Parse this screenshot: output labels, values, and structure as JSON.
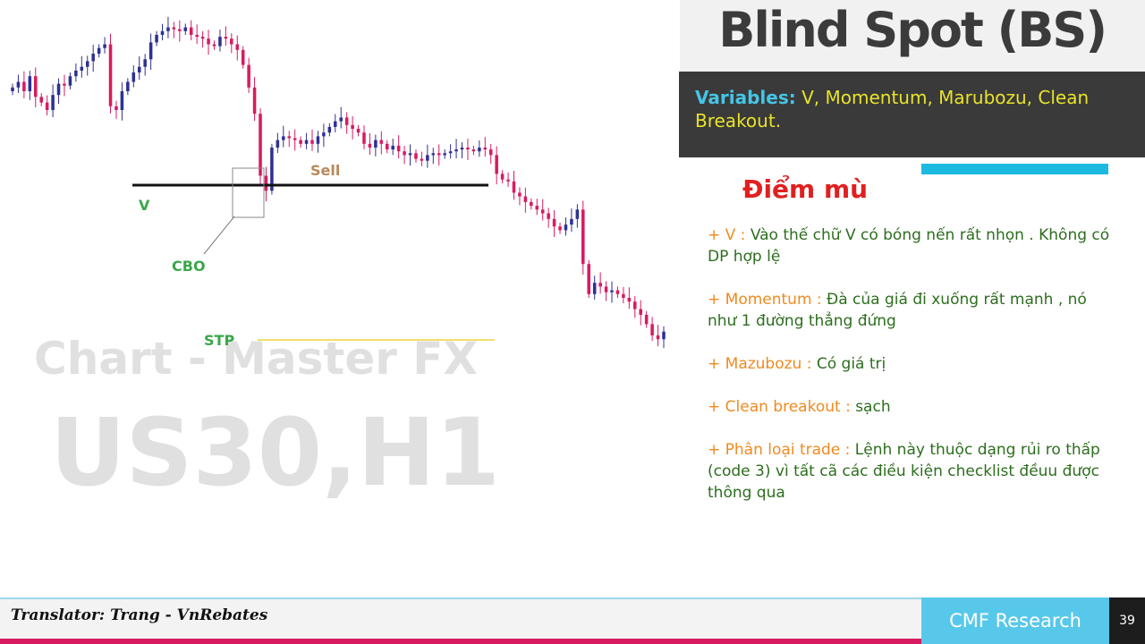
{
  "header": {
    "title": "Blind Spot (BS)",
    "variables_label": "Variables:",
    "variables_text": " V, Momentum, Marubozu, Clean Breakout.",
    "subtitle": "Điểm mù"
  },
  "notes": [
    {
      "key": "+ V : ",
      "value": "Vào thế chữ V có bóng nến rất nhọn . Không có DP hợp lệ"
    },
    {
      "key": "+ Momentum : ",
      "value": "Đà của giá đi xuống rất mạnh , nó như 1 đường thẳng đứng"
    },
    {
      "key": "+ Mazubozu : ",
      "value": "Có giá trị"
    },
    {
      "key": "+ Clean breakout : ",
      "value": "sạch"
    },
    {
      "key": "+ Phân loại trade : ",
      "value": "Lệnh này thuộc dạng rủi ro thấp (code 3) vì tất cã các điều kiện checklist đềuu được thông qua"
    }
  ],
  "footer": {
    "translator": "Translator: Trang - VnRebates",
    "brand": "CMF Research",
    "page": "39"
  },
  "colors": {
    "bull": "#2e3192",
    "bear": "#d81b60",
    "accent": "#1cb9e0",
    "label_green": "#3aa64a",
    "sell_label": "#b8885a",
    "stp_line": "#f0e06a",
    "resistance_line": "#111111"
  },
  "chart_data": {
    "type": "candlestick",
    "watermark": [
      "Chart - Master FX",
      "US30,H1"
    ],
    "annotations": {
      "v": "V",
      "cbo": "CBO",
      "sell": "Sell",
      "stp": "STP"
    },
    "close_series": [
      52,
      55,
      50,
      58,
      47,
      44,
      40,
      48,
      54,
      53,
      58,
      61,
      63,
      66,
      70,
      73,
      75,
      42,
      40,
      50,
      55,
      60,
      63,
      67,
      76,
      80,
      82,
      84,
      83,
      82,
      84,
      80,
      79,
      78,
      75,
      74,
      79,
      78,
      75,
      72,
      64,
      52,
      38,
      5,
      -3,
      20,
      24,
      26,
      25,
      24,
      22,
      24,
      22,
      26,
      28,
      31,
      34,
      36,
      32,
      30,
      28,
      22,
      20,
      24,
      22,
      19,
      21,
      18,
      16,
      17,
      14,
      13,
      16,
      17,
      16,
      17,
      18,
      19,
      20,
      19,
      18,
      20,
      19,
      16,
      6,
      3,
      2,
      -4,
      -6,
      -9,
      -11,
      -13,
      -15,
      -18,
      -22,
      -24,
      -21,
      -18,
      -13,
      -42,
      -58,
      -52,
      -54,
      -57,
      -56,
      -58,
      -60,
      -62,
      -66,
      -69,
      -74,
      -80,
      -82,
      -78
    ]
  }
}
